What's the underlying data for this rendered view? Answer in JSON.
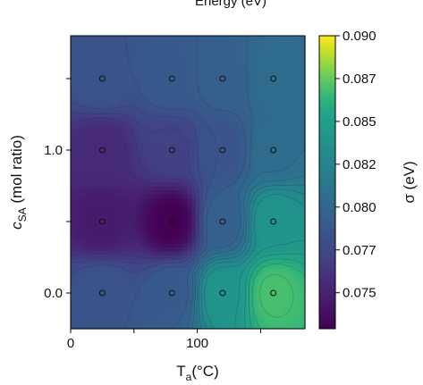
{
  "chart_data": {
    "type": "heatmap",
    "title": "Energy (eV)",
    "xlabel": "T",
    "xlabel_sub": "a",
    "xlabel_unit": "(°C)",
    "ylabel": "c",
    "ylabel_sub": "SA",
    "ylabel_unit": " (mol ratio)",
    "colorbar_label": "σ (eV)",
    "xlim": [
      0,
      185
    ],
    "ylim": [
      -0.25,
      1.8
    ],
    "x_ticks": [
      0,
      50,
      100,
      150
    ],
    "x_tick_labels": [
      "0",
      "",
      "100",
      ""
    ],
    "y_ticks": [
      0.0,
      0.5,
      1.0,
      1.5
    ],
    "y_tick_labels": [
      "0.0",
      "",
      "1.0",
      ""
    ],
    "colorbar_range": [
      0.0729,
      0.09
    ],
    "colorbar_ticks": [
      0.075,
      0.0775,
      0.08,
      0.0825,
      0.085,
      0.0875,
      0.09
    ],
    "colorbar_tick_labels": [
      "0.075",
      "0.077",
      "0.080",
      "0.082",
      "0.085",
      "0.087",
      "0.090"
    ],
    "colormap": "viridis",
    "points": [
      {
        "x": 25,
        "y": 0.0,
        "value": 0.0785
      },
      {
        "x": 80,
        "y": 0.0,
        "value": 0.079
      },
      {
        "x": 120,
        "y": 0.0,
        "value": 0.084
      },
      {
        "x": 160,
        "y": 0.0,
        "value": 0.087
      },
      {
        "x": 25,
        "y": 0.5,
        "value": 0.0745
      },
      {
        "x": 80,
        "y": 0.5,
        "value": 0.0729
      },
      {
        "x": 120,
        "y": 0.5,
        "value": 0.0795
      },
      {
        "x": 160,
        "y": 0.5,
        "value": 0.084
      },
      {
        "x": 25,
        "y": 1.0,
        "value": 0.0755
      },
      {
        "x": 80,
        "y": 1.0,
        "value": 0.077
      },
      {
        "x": 120,
        "y": 1.0,
        "value": 0.0785
      },
      {
        "x": 160,
        "y": 1.0,
        "value": 0.0805
      },
      {
        "x": 25,
        "y": 1.5,
        "value": 0.0785
      },
      {
        "x": 80,
        "y": 1.5,
        "value": 0.079
      },
      {
        "x": 120,
        "y": 1.5,
        "value": 0.0795
      },
      {
        "x": 160,
        "y": 1.5,
        "value": 0.0805
      }
    ]
  }
}
